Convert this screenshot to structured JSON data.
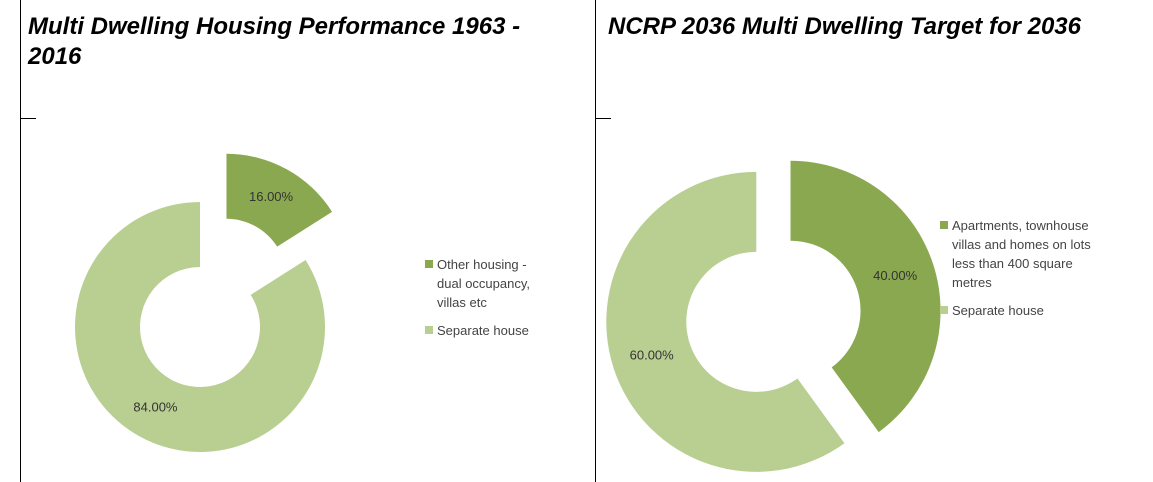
{
  "header": {
    "left_title": "Multi Dwelling Housing Performance 1963 - 2016",
    "right_title": "NCRP 2036 Multi Dwelling Target for 2036"
  },
  "chart_data": [
    {
      "type": "donut",
      "categories": [
        "Other housing - dual occupancy, villas etc",
        "Separate house"
      ],
      "values": [
        16,
        84
      ],
      "value_labels": [
        "16.00%",
        "84.00%"
      ],
      "colors": [
        "#8aa84f",
        "#b9cf92"
      ],
      "legend": "right"
    },
    {
      "type": "donut",
      "categories": [
        "Apartments, townhouse villas and homes on lots less than 400 square metres",
        "Separate house"
      ],
      "values": [
        40,
        60
      ],
      "value_labels": [
        "40.00%",
        "60.00%"
      ],
      "colors": [
        "#8aa84f",
        "#b9cf92"
      ],
      "legend": "right"
    }
  ]
}
